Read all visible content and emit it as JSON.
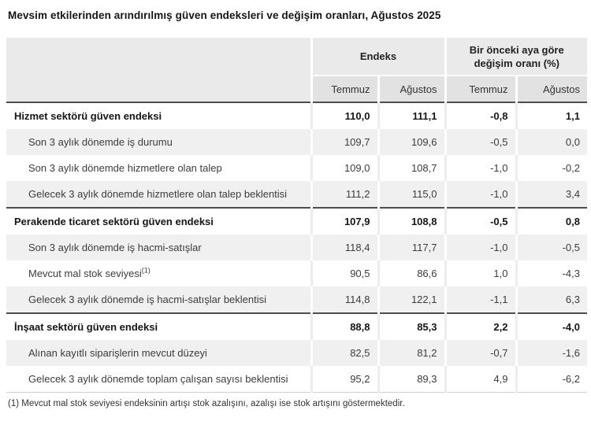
{
  "title": "Mevsim etkilerinden arındırılmış güven endeksleri ve değişim oranları, Ağustos 2025",
  "table": {
    "group_headers": [
      {
        "label": "Endeks"
      },
      {
        "label": "Bir önceki aya göre değişim oranı (%)"
      }
    ],
    "sub_headers": [
      "Temmuz",
      "Ağustos",
      "Temmuz",
      "Ağustos"
    ],
    "rows": [
      {
        "label": "Hizmet sektörü güven endeksi",
        "section": true,
        "values": [
          "110,0",
          "111,1",
          "-0,8",
          "1,1"
        ]
      },
      {
        "label": "Son 3 aylık dönemde iş durumu",
        "section": false,
        "values": [
          "109,7",
          "109,6",
          "-0,5",
          "0,0"
        ]
      },
      {
        "label": "Son 3 aylık dönemde hizmetlere olan talep",
        "section": false,
        "values": [
          "109,0",
          "108,7",
          "-1,0",
          "-0,2"
        ]
      },
      {
        "label": "Gelecek 3 aylık dönemde hizmetlere olan talep beklentisi",
        "section": false,
        "values": [
          "111,2",
          "115,0",
          "-1,0",
          "3,4"
        ]
      },
      {
        "label": "Perakende ticaret sektörü güven endeksi",
        "section": true,
        "values": [
          "107,9",
          "108,8",
          "-0,5",
          "0,8"
        ]
      },
      {
        "label": "Son 3 aylık dönemde iş hacmi-satışlar",
        "section": false,
        "values": [
          "118,4",
          "117,7",
          "-1,0",
          "-0,5"
        ]
      },
      {
        "label": "Mevcut mal stok seviyesi",
        "sup": "(1)",
        "section": false,
        "values": [
          "90,5",
          "86,6",
          "1,0",
          "-4,3"
        ]
      },
      {
        "label": "Gelecek 3 aylık dönemde iş hacmi-satışlar beklentisi",
        "section": false,
        "values": [
          "114,8",
          "122,1",
          "-1,1",
          "6,3"
        ]
      },
      {
        "label": "İnşaat sektörü güven endeksi",
        "section": true,
        "values": [
          "88,8",
          "85,3",
          "2,2",
          "-4,0"
        ]
      },
      {
        "label": "Alınan kayıtlı siparişlerin mevcut düzeyi",
        "section": false,
        "values": [
          "82,5",
          "81,2",
          "-0,7",
          "-1,6"
        ]
      },
      {
        "label": "Gelecek 3 aylık dönemde toplam çalışan sayısı beklentisi",
        "section": false,
        "values": [
          "95,2",
          "89,3",
          "4,9",
          "-6,2"
        ]
      }
    ]
  },
  "footnote": "(1) Mevcut mal stok seviyesi endeksinin artışı stok azalışını, azalışı ise stok artışını göstermektedir.",
  "colors": {
    "header_bg": "#eaeaea",
    "subheader_bg": "#e2e2e2",
    "row_alt_bg": "#f0f0f0",
    "section_border": "#4d4d4d",
    "text": "#3c3c3c"
  }
}
